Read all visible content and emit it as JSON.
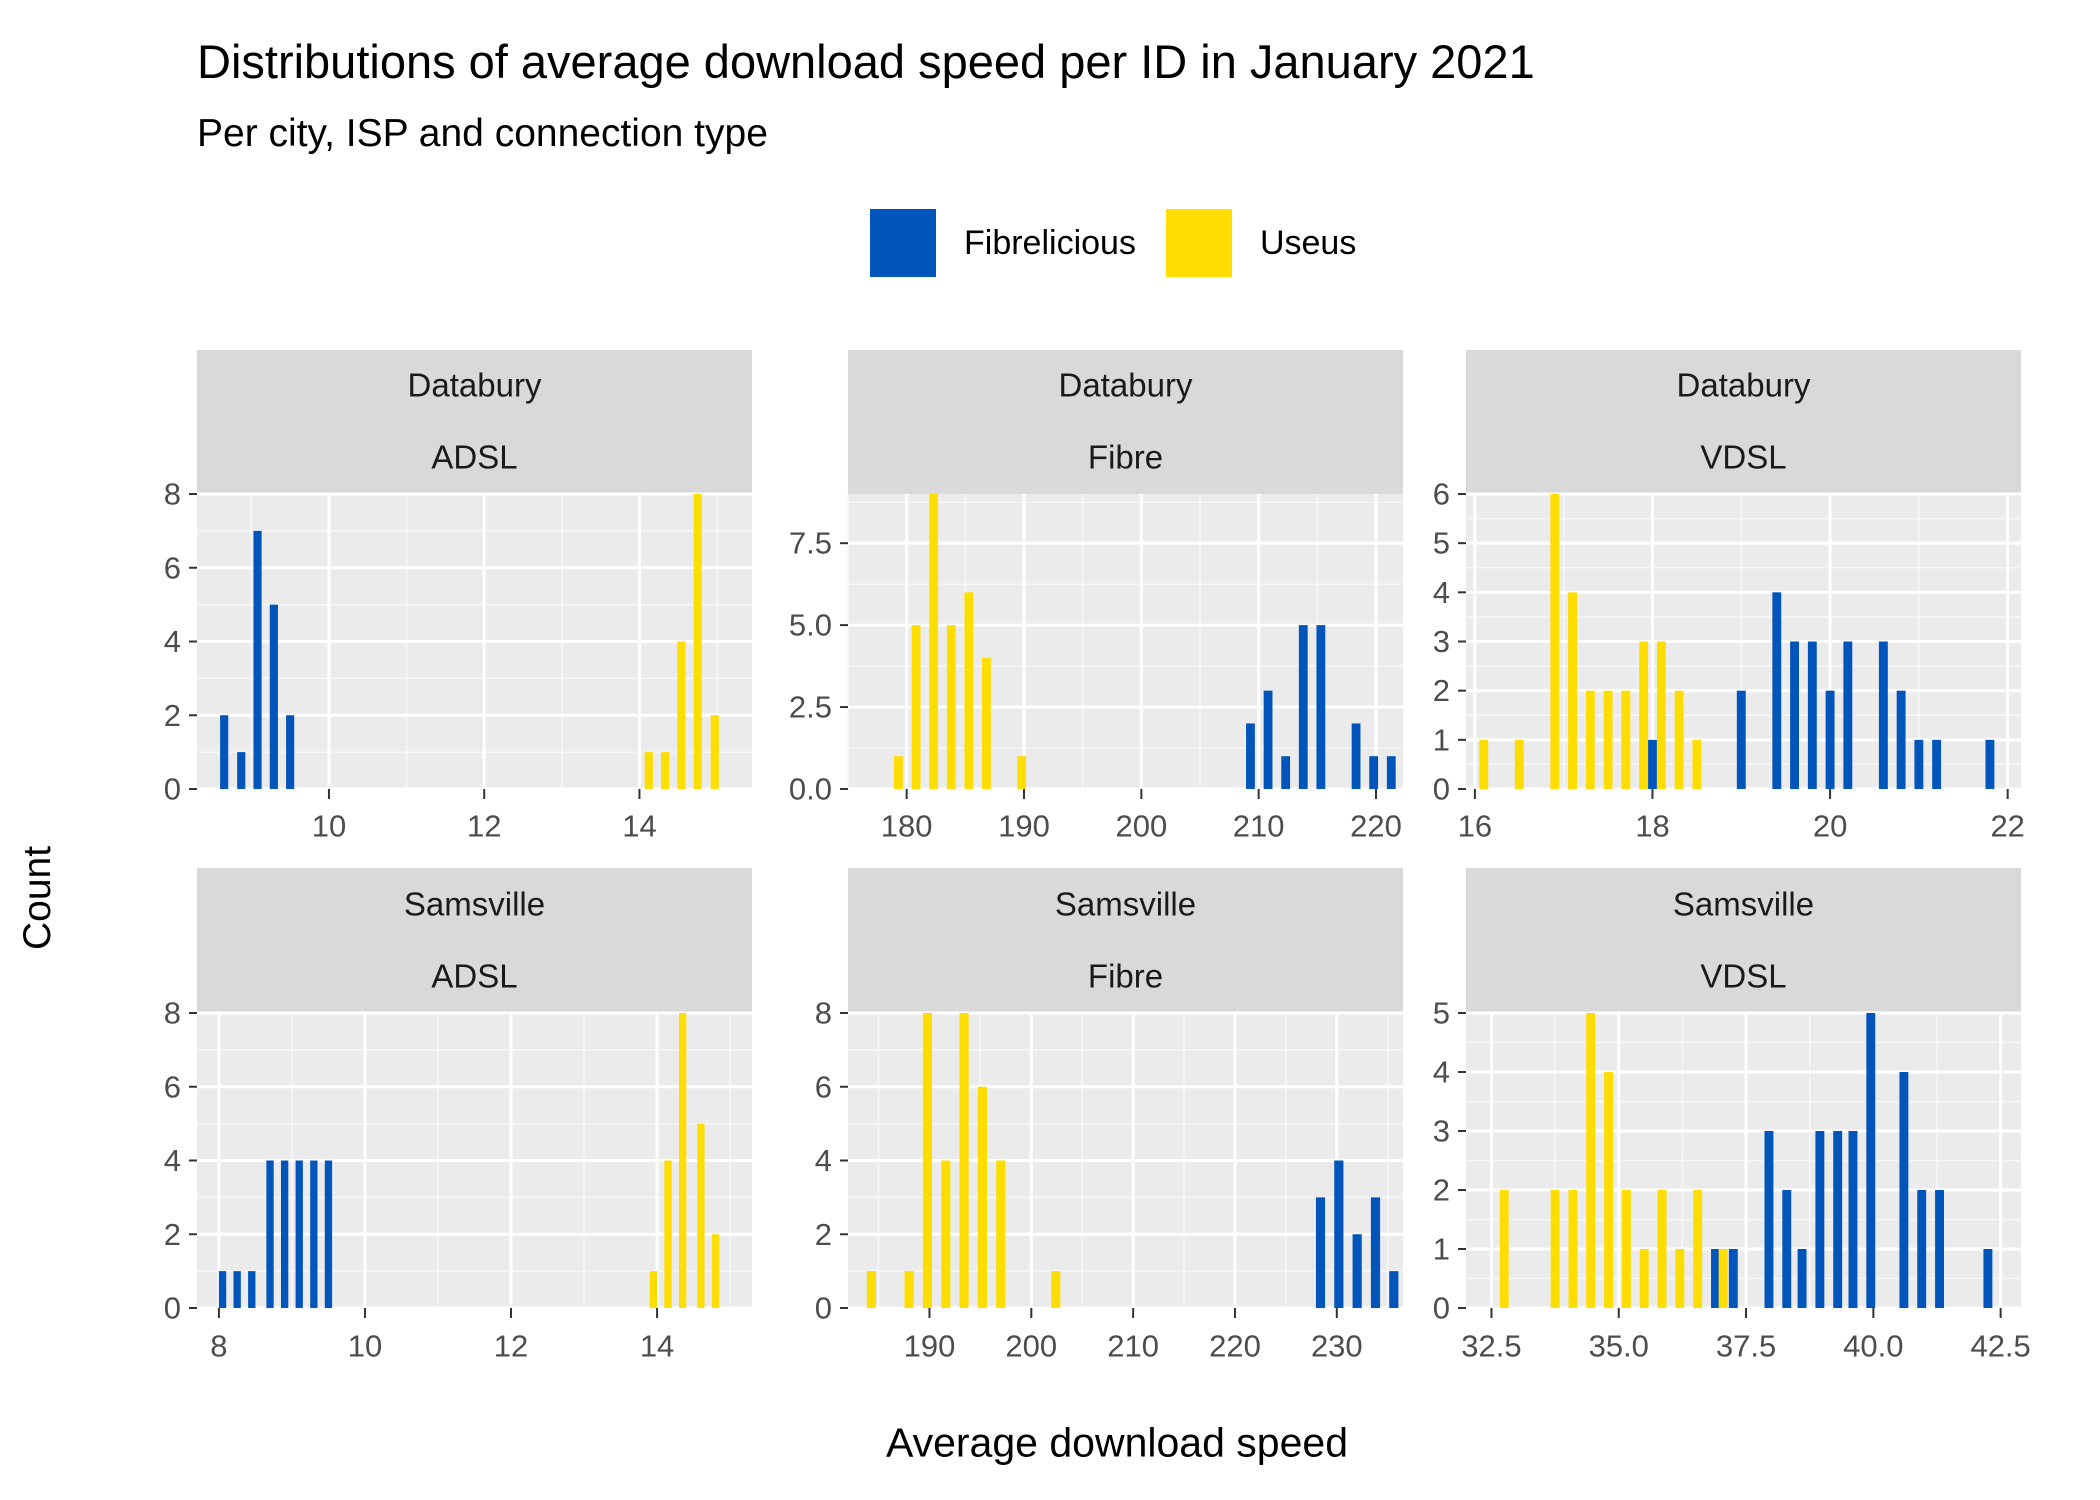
{
  "chart_data": {
    "type": "bar",
    "title": "Distributions of average download speed per ID in January 2021",
    "subtitle": "Per city, ISP and connection type",
    "xlabel": "Average download speed",
    "ylabel": "Count",
    "legend": {
      "placement": "top",
      "entries": [
        {
          "name": "Fibrelicious",
          "color": "#0055BB"
        },
        {
          "name": "Useus",
          "color": "#FFDD00"
        }
      ]
    },
    "grid": true,
    "facets": [
      {
        "city": "Databury",
        "connection": "ADSL",
        "xlim": [
          8.3,
          15.45
        ],
        "ylim": [
          0,
          8
        ],
        "xticks": [
          {
            "value": 10,
            "label": "10"
          },
          {
            "value": 12,
            "label": "12"
          },
          {
            "value": 14,
            "label": "14"
          }
        ],
        "yticks": [
          {
            "value": 0,
            "label": "0"
          },
          {
            "value": 2,
            "label": "2"
          },
          {
            "value": 4,
            "label": "4"
          },
          {
            "value": 6,
            "label": "6"
          },
          {
            "value": 8,
            "label": "8"
          }
        ],
        "bin_width": 0.21,
        "series": [
          {
            "name": "Fibrelicious",
            "x": [
              8.65,
              8.87,
              9.08,
              9.29,
              9.5
            ],
            "values": [
              2,
              1,
              7,
              5,
              2
            ]
          },
          {
            "name": "Useus",
            "x": [
              14.12,
              14.33,
              14.54,
              14.75,
              14.97
            ],
            "values": [
              1,
              1,
              4,
              8,
              2
            ]
          }
        ]
      },
      {
        "city": "Databury",
        "connection": "Fibre",
        "xlim": [
          175,
          222.3
        ],
        "ylim": [
          0,
          9
        ],
        "xticks": [
          {
            "value": 180,
            "label": "180"
          },
          {
            "value": 190,
            "label": "190"
          },
          {
            "value": 200,
            "label": "200"
          },
          {
            "value": 210,
            "label": "210"
          },
          {
            "value": 220,
            "label": "220"
          }
        ],
        "yticks": [
          {
            "value": 0,
            "label": "0.0"
          },
          {
            "value": 2.5,
            "label": "2.5"
          },
          {
            "value": 5,
            "label": "5.0"
          },
          {
            "value": 7.5,
            "label": "7.5"
          }
        ],
        "bin_width": 1.5,
        "series": [
          {
            "name": "Fibrelicious",
            "x": [
              209.3,
              210.8,
              212.3,
              213.8,
              215.3,
              218.3,
              219.8,
              221.3
            ],
            "values": [
              2,
              3,
              1,
              5,
              5,
              2,
              1,
              1
            ]
          },
          {
            "name": "Useus",
            "x": [
              179.3,
              180.8,
              182.3,
              183.8,
              185.3,
              186.8,
              189.8
            ],
            "values": [
              1,
              5,
              9,
              5,
              6,
              4,
              1
            ]
          }
        ]
      },
      {
        "city": "Databury",
        "connection": "VDSL",
        "xlim": [
          15.9,
          22.15
        ],
        "ylim": [
          0,
          6
        ],
        "xticks": [
          {
            "value": 16,
            "label": "16"
          },
          {
            "value": 18,
            "label": "18"
          },
          {
            "value": 20,
            "label": "20"
          },
          {
            "value": 22,
            "label": "22"
          }
        ],
        "yticks": [
          {
            "value": 0,
            "label": "0"
          },
          {
            "value": 1,
            "label": "1"
          },
          {
            "value": 2,
            "label": "2"
          },
          {
            "value": 3,
            "label": "3"
          },
          {
            "value": 4,
            "label": "4"
          },
          {
            "value": 5,
            "label": "5"
          },
          {
            "value": 6,
            "label": "6"
          }
        ],
        "bin_width": 0.2,
        "series": [
          {
            "name": "Fibrelicious",
            "x": [
              18,
              19,
              19.4,
              19.6,
              19.8,
              20,
              20.2,
              20.6,
              20.8,
              21,
              21.2,
              21.8
            ],
            "values": [
              1,
              2,
              4,
              3,
              3,
              2,
              3,
              3,
              2,
              1,
              1,
              1
            ]
          },
          {
            "name": "Useus",
            "x": [
              16.1,
              16.5,
              16.9,
              17.1,
              17.3,
              17.5,
              17.7,
              17.9,
              18.1,
              18.3,
              18.5
            ],
            "values": [
              1,
              1,
              6,
              4,
              2,
              2,
              2,
              3,
              3,
              2,
              1
            ]
          }
        ]
      },
      {
        "city": "Samsville",
        "connection": "ADSL",
        "xlim": [
          7.7,
          15.3
        ],
        "ylim": [
          0,
          8
        ],
        "xticks": [
          {
            "value": 8,
            "label": "8"
          },
          {
            "value": 10,
            "label": "10"
          },
          {
            "value": 12,
            "label": "12"
          },
          {
            "value": 14,
            "label": "14"
          }
        ],
        "yticks": [
          {
            "value": 0,
            "label": "0"
          },
          {
            "value": 2,
            "label": "2"
          },
          {
            "value": 4,
            "label": "4"
          },
          {
            "value": 6,
            "label": "6"
          },
          {
            "value": 8,
            "label": "8"
          }
        ],
        "bin_width": 0.2,
        "series": [
          {
            "name": "Fibrelicious",
            "x": [
              8.05,
              8.25,
              8.45,
              8.7,
              8.9,
              9.1,
              9.3,
              9.5
            ],
            "values": [
              1,
              1,
              1,
              4,
              4,
              4,
              4,
              4
            ]
          },
          {
            "name": "Useus",
            "x": [
              13.95,
              14.15,
              14.35,
              14.6,
              14.8
            ],
            "values": [
              1,
              4,
              8,
              5,
              2
            ]
          }
        ]
      },
      {
        "city": "Samsville",
        "connection": "Fibre",
        "xlim": [
          182,
          236.5
        ],
        "ylim": [
          0,
          8
        ],
        "xticks": [
          {
            "value": 190,
            "label": "190"
          },
          {
            "value": 200,
            "label": "200"
          },
          {
            "value": 210,
            "label": "210"
          },
          {
            "value": 220,
            "label": "220"
          },
          {
            "value": 230,
            "label": "230"
          }
        ],
        "yticks": [
          {
            "value": 0,
            "label": "0"
          },
          {
            "value": 2,
            "label": "2"
          },
          {
            "value": 4,
            "label": "4"
          },
          {
            "value": 6,
            "label": "6"
          },
          {
            "value": 8,
            "label": "8"
          }
        ],
        "bin_width": 1.8,
        "series": [
          {
            "name": "Fibrelicious",
            "x": [
              228.4,
              230.2,
              232,
              233.8,
              235.6
            ],
            "values": [
              3,
              4,
              2,
              3,
              1
            ]
          },
          {
            "name": "Useus",
            "x": [
              184.3,
              188,
              189.8,
              191.6,
              193.4,
              195.2,
              197,
              202.4
            ],
            "values": [
              1,
              1,
              8,
              4,
              8,
              6,
              4,
              1
            ]
          }
        ]
      },
      {
        "city": "Samsville",
        "connection": "VDSL",
        "xlim": [
          32,
          42.9
        ],
        "ylim": [
          0,
          5
        ],
        "xticks": [
          {
            "value": 32.5,
            "label": "32.5"
          },
          {
            "value": 35,
            "label": "35.0"
          },
          {
            "value": 37.5,
            "label": "37.5"
          },
          {
            "value": 40,
            "label": "40.0"
          },
          {
            "value": 42.5,
            "label": "42.5"
          }
        ],
        "yticks": [
          {
            "value": 0,
            "label": "0"
          },
          {
            "value": 1,
            "label": "1"
          },
          {
            "value": 2,
            "label": "2"
          },
          {
            "value": 3,
            "label": "3"
          },
          {
            "value": 4,
            "label": "4"
          },
          {
            "value": 5,
            "label": "5"
          }
        ],
        "bin_width": 0.35,
        "series": [
          {
            "name": "Fibrelicious",
            "x": [
              36.9,
              37.25,
              37.95,
              38.3,
              38.6,
              38.95,
              39.3,
              39.6,
              39.95,
              40.6,
              40.95,
              41.3,
              42.25
            ],
            "values": [
              1,
              1,
              3,
              2,
              1,
              3,
              3,
              3,
              5,
              4,
              2,
              2,
              1
            ]
          },
          {
            "name": "Useus",
            "x": [
              32.75,
              33.75,
              34.1,
              34.45,
              34.8,
              35.15,
              35.5,
              35.85,
              36.2,
              36.55,
              37.05
            ],
            "values": [
              2,
              2,
              2,
              5,
              4,
              2,
              1,
              2,
              1,
              2,
              1
            ]
          }
        ]
      }
    ]
  }
}
